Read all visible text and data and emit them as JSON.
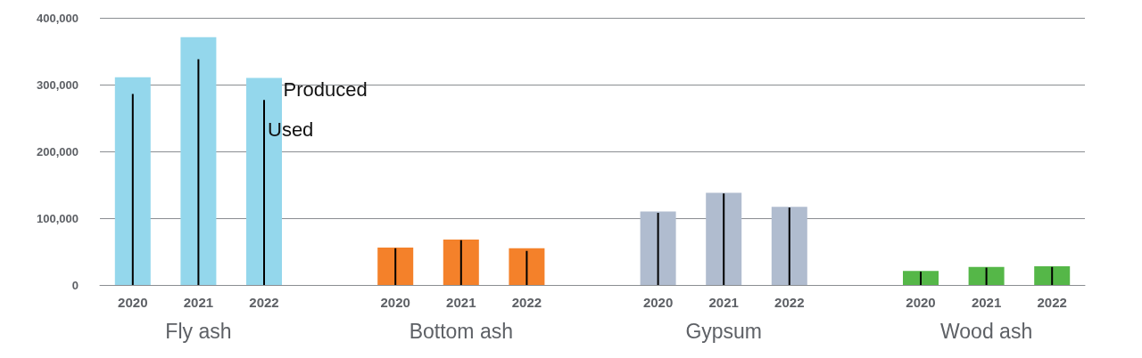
{
  "chart_data": {
    "type": "bar",
    "categories": [
      "2020",
      "2021",
      "2022",
      null,
      "2020",
      "2021",
      "2022",
      null,
      "2020",
      "2021",
      "2022",
      null,
      "2020",
      "2021",
      "2022"
    ],
    "series": [
      {
        "name": "Produced",
        "colors": [
          "#94d7ec",
          "#94d7ec",
          "#94d7ec",
          null,
          "#f4812a",
          "#f4812a",
          "#f4812a",
          null,
          "#b0bccf",
          "#b0bccf",
          "#b0bccf",
          null,
          "#55b748",
          "#55b748",
          "#55b748"
        ],
        "values": [
          311000,
          371000,
          310000,
          null,
          56000,
          68000,
          55000,
          null,
          110000,
          138000,
          117000,
          null,
          21000,
          27000,
          28000
        ]
      },
      {
        "name": "Used",
        "color": "#000000",
        "values": [
          286000,
          338000,
          277000,
          null,
          55000,
          67000,
          51000,
          null,
          108000,
          137000,
          116000,
          null,
          20000,
          26000,
          27000
        ]
      }
    ],
    "annotations": [
      "Fly ash",
      "Bottom ash",
      "Gypsum",
      "Wood ash"
    ],
    "ylim": [
      0,
      400000
    ],
    "yticks": [
      {
        "value": 0,
        "label": "0"
      },
      {
        "value": 100000,
        "label": "100,000"
      },
      {
        "value": 200000,
        "label": "200,000"
      },
      {
        "value": 300000,
        "label": "300,000"
      },
      {
        "value": 400000,
        "label": "400,000"
      }
    ],
    "grid": "y"
  }
}
